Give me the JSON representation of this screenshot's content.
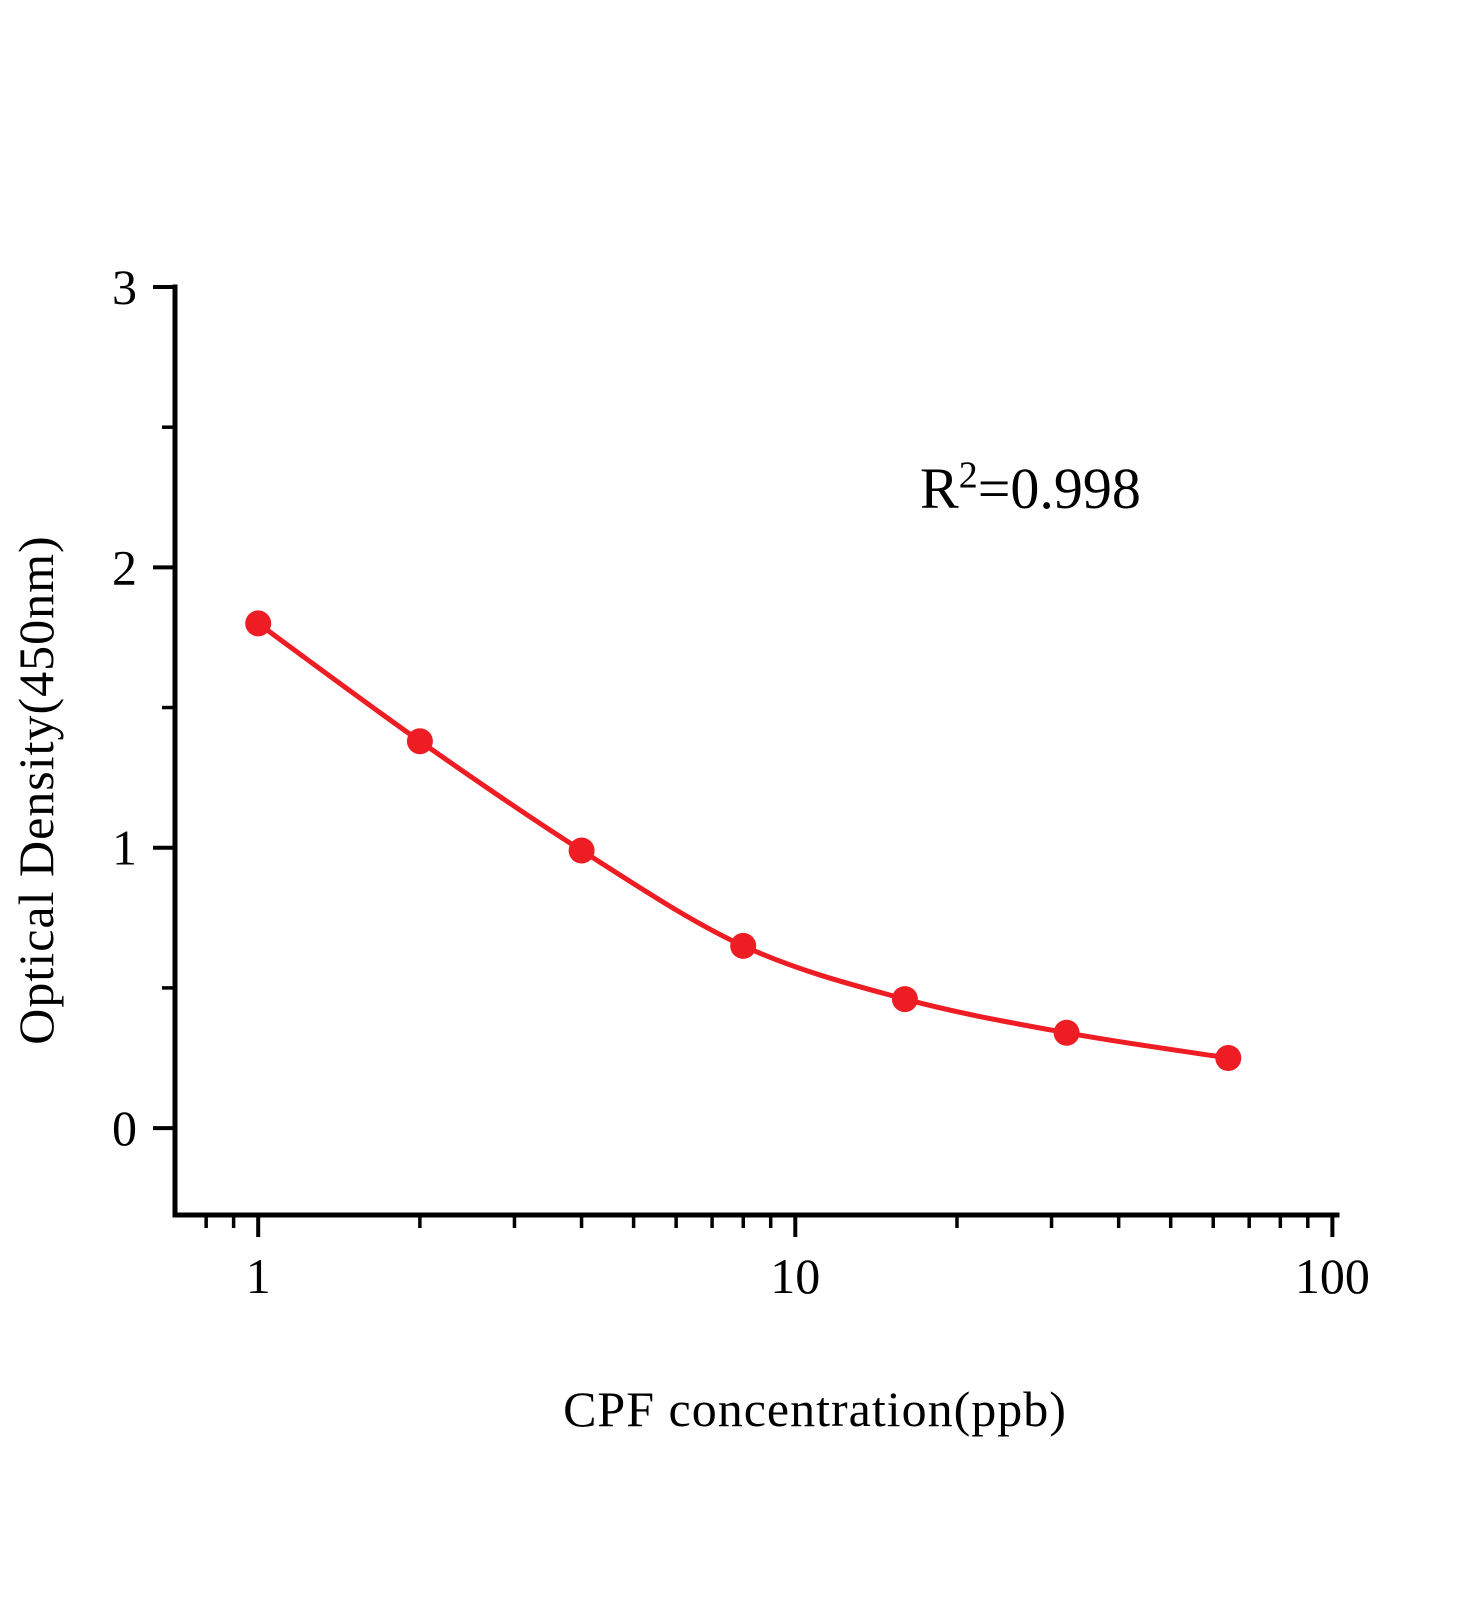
{
  "page": {
    "background": "#ffffff"
  },
  "annotation": {
    "base": "R",
    "sup": "2",
    "rest": "=0.998"
  },
  "chart_data": {
    "type": "scatter",
    "title": "",
    "xlabel": "CPF concentration(ppb)",
    "ylabel": "Optical Density(450nm)",
    "x_scale": "log10",
    "y_scale": "linear",
    "x": [
      1,
      2,
      4,
      8,
      16,
      32,
      64
    ],
    "y": [
      1.8,
      1.38,
      0.99,
      0.65,
      0.46,
      0.34,
      0.25
    ],
    "r_squared": 0.998,
    "series_color": "#ee1c23",
    "axis_color": "#000000",
    "marker_radius": 13,
    "line_width": 5,
    "xlim": [
      0.7,
      102
    ],
    "ylim": [
      -0.31,
      3
    ],
    "grid": false,
    "legend": "none",
    "x_major_ticks": [
      {
        "value": 1,
        "label": "1"
      },
      {
        "value": 10,
        "label": "10"
      },
      {
        "value": 100,
        "label": "100"
      }
    ],
    "x_minor_ticks": [
      0.8,
      0.9,
      2,
      3,
      4,
      5,
      6,
      7,
      8,
      9,
      20,
      30,
      40,
      50,
      60,
      70,
      80,
      90
    ],
    "y_major_ticks": [
      {
        "value": 0,
        "label": "0"
      },
      {
        "value": 1,
        "label": "1"
      },
      {
        "value": 2,
        "label": "2"
      },
      {
        "value": 3,
        "label": "3"
      }
    ],
    "y_minor_ticks": [
      0.5,
      1.5,
      2.5
    ]
  }
}
